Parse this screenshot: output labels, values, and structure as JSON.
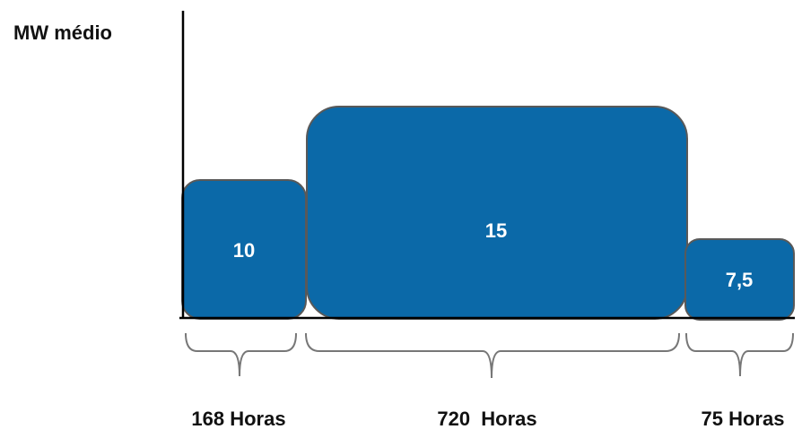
{
  "axis_label": "MW médio",
  "blocks": [
    {
      "value_label": "10",
      "duration_label": "168 Horas"
    },
    {
      "value_label": "15",
      "duration_label": "720  Horas"
    },
    {
      "value_label": "7,5",
      "duration_label": "75 Horas"
    }
  ]
}
